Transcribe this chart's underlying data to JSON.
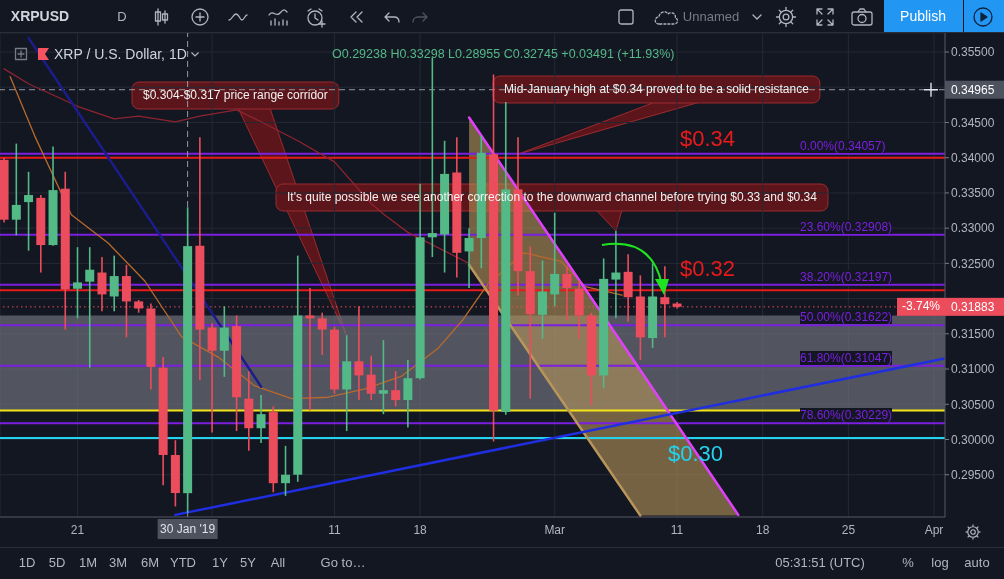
{
  "chart_data": {
    "type": "candlestick",
    "title": "XRP / U.S. Dollar, 1D",
    "subtitle": "O0.29238 H0.33298 L0.28955 C0.32745 +0.03491 (+11.93%)",
    "x": [
      "2019-01-15",
      "2019-01-16",
      "2019-01-17",
      "2019-01-18",
      "2019-01-19",
      "2019-01-20",
      "2019-01-21",
      "2019-01-22",
      "2019-01-23",
      "2019-01-24",
      "2019-01-25",
      "2019-01-26",
      "2019-01-27",
      "2019-01-28",
      "2019-01-29",
      "2019-01-30",
      "2019-01-31",
      "2019-02-01",
      "2019-02-02",
      "2019-02-03",
      "2019-02-04",
      "2019-02-05",
      "2019-02-06",
      "2019-02-07",
      "2019-02-08",
      "2019-02-09",
      "2019-02-10",
      "2019-02-11",
      "2019-02-12",
      "2019-02-13",
      "2019-02-14",
      "2019-02-15",
      "2019-02-16",
      "2019-02-17",
      "2019-02-18",
      "2019-02-19",
      "2019-02-20",
      "2019-02-21",
      "2019-02-22",
      "2019-02-23",
      "2019-02-24",
      "2019-02-25",
      "2019-02-26",
      "2019-02-27",
      "2019-02-28",
      "2019-03-01",
      "2019-03-02",
      "2019-03-03",
      "2019-03-04",
      "2019-03-05",
      "2019-03-06",
      "2019-03-07",
      "2019-03-08",
      "2019-03-09",
      "2019-03-10",
      "2019-03-11"
    ],
    "ohlc": [
      [
        0.3397,
        0.34,
        0.3308,
        0.3312
      ],
      [
        0.3312,
        0.342,
        0.329,
        0.3333
      ],
      [
        0.3337,
        0.338,
        0.3268,
        0.3347
      ],
      [
        0.3343,
        0.3347,
        0.3237,
        0.3276
      ],
      [
        0.3276,
        0.3416,
        0.3275,
        0.3354
      ],
      [
        0.3356,
        0.338,
        0.3156,
        0.3213
      ],
      [
        0.3214,
        0.3273,
        0.3172,
        0.3223
      ],
      [
        0.3224,
        0.3273,
        0.3102,
        0.3241
      ],
      [
        0.3237,
        0.3259,
        0.3182,
        0.3206
      ],
      [
        0.3203,
        0.3261,
        0.3182,
        0.3232
      ],
      [
        0.3232,
        0.3248,
        0.3145,
        0.3196
      ],
      [
        0.3196,
        0.3198,
        0.318,
        0.3186
      ],
      [
        0.3186,
        0.3193,
        0.3071,
        0.3103
      ],
      [
        0.3102,
        0.3117,
        0.2935,
        0.2978
      ],
      [
        0.2978,
        0.2999,
        0.2905,
        0.2924
      ],
      [
        0.29238,
        0.33298,
        0.28955,
        0.32745
      ],
      [
        0.3275,
        0.3429,
        0.3084,
        0.3156
      ],
      [
        0.3159,
        0.3165,
        0.301,
        0.3126
      ],
      [
        0.3126,
        0.3189,
        0.3089,
        0.3159
      ],
      [
        0.3161,
        0.3176,
        0.3012,
        0.306
      ],
      [
        0.3058,
        0.3097,
        0.2984,
        0.3016
      ],
      [
        0.3016,
        0.3063,
        0.2995,
        0.3036
      ],
      [
        0.3039,
        0.3047,
        0.2925,
        0.2938
      ],
      [
        0.2938,
        0.2991,
        0.292,
        0.295
      ],
      [
        0.295,
        0.3261,
        0.294,
        0.3176
      ],
      [
        0.3176,
        0.3215,
        0.3041,
        0.3172
      ],
      [
        0.3172,
        0.318,
        0.312,
        0.3156
      ],
      [
        0.3156,
        0.316,
        0.3065,
        0.3071
      ],
      [
        0.3071,
        0.3148,
        0.3012,
        0.3111
      ],
      [
        0.3111,
        0.3189,
        0.3056,
        0.3091
      ],
      [
        0.3092,
        0.3119,
        0.3056,
        0.3065
      ],
      [
        0.3065,
        0.3141,
        0.3036,
        0.307
      ],
      [
        0.307,
        0.3097,
        0.3047,
        0.3056
      ],
      [
        0.3056,
        0.3113,
        0.3017,
        0.3087
      ],
      [
        0.3087,
        0.3363,
        0.3085,
        0.3287
      ],
      [
        0.3287,
        0.3542,
        0.3259,
        0.3293
      ],
      [
        0.3291,
        0.3424,
        0.3237,
        0.3377
      ],
      [
        0.3379,
        0.3429,
        0.323,
        0.3265
      ],
      [
        0.3267,
        0.33,
        0.3215,
        0.3286
      ],
      [
        0.3286,
        0.3431,
        0.3243,
        0.3407
      ],
      [
        0.3405,
        0.3518,
        0.2997,
        0.3041
      ],
      [
        0.3039,
        0.3479,
        0.3035,
        0.3355
      ],
      [
        0.3355,
        0.3429,
        0.3204,
        0.3239
      ],
      [
        0.3239,
        0.3274,
        0.3058,
        0.3178
      ],
      [
        0.3177,
        0.3254,
        0.3143,
        0.321
      ],
      [
        0.3206,
        0.3322,
        0.3189,
        0.3235
      ],
      [
        0.3235,
        0.3246,
        0.3169,
        0.3215
      ],
      [
        0.3214,
        0.3226,
        0.3143,
        0.3176
      ],
      [
        0.3176,
        0.318,
        0.3049,
        0.3091
      ],
      [
        0.3091,
        0.3257,
        0.3073,
        0.3228
      ],
      [
        0.3227,
        0.3296,
        0.3172,
        0.3237
      ],
      [
        0.3238,
        0.3263,
        0.3167,
        0.3202
      ],
      [
        0.3203,
        0.3233,
        0.3113,
        0.3145
      ],
      [
        0.3144,
        0.325,
        0.313,
        0.3203
      ],
      [
        0.3202,
        0.3246,
        0.3145,
        0.3192
      ],
      [
        0.3193,
        0.3195,
        0.3186,
        0.31883
      ]
    ],
    "colors": [
      "#eb4d5c",
      "#53b987",
      "#53b987",
      "#eb4d5c",
      "#53b987",
      "#eb4d5c",
      "#53b987",
      "#53b987",
      "#eb4d5c",
      "#53b987",
      "#eb4d5c",
      "#eb4d5c",
      "#eb4d5c",
      "#eb4d5c",
      "#eb4d5c",
      "#53b987",
      "#eb4d5c",
      "#eb4d5c",
      "#53b987",
      "#eb4d5c",
      "#eb4d5c",
      "#53b987",
      "#eb4d5c",
      "#53b987",
      "#53b987",
      "#eb4d5c",
      "#eb4d5c",
      "#eb4d5c",
      "#53b987",
      "#eb4d5c",
      "#eb4d5c",
      "#53b987",
      "#eb4d5c",
      "#53b987",
      "#53b987",
      "#53b987",
      "#53b987",
      "#eb4d5c",
      "#53b987",
      "#53b987",
      "#eb4d5c",
      "#53b987",
      "#eb4d5c",
      "#eb4d5c",
      "#53b987",
      "#53b987",
      "#eb4d5c",
      "#eb4d5c",
      "#eb4d5c",
      "#53b987",
      "#53b987",
      "#eb4d5c",
      "#eb4d5c",
      "#53b987",
      "#eb4d5c",
      "#eb4d5c"
    ],
    "series": [
      {
        "type": "line",
        "color": "#b8692c",
        "x": [
          "2019-01-15T12:00",
          "2019-01-17T12:00",
          "2019-01-20T12:00",
          "2019-01-23T12:00",
          "2019-01-26T12:00",
          "2019-01-29T12:00",
          "2019-02-01T12:00",
          "2019-02-04T12:00",
          "2019-02-07T12:00",
          "2019-02-10T12:00",
          "2019-02-13T12:00",
          "2019-02-16T12:00",
          "2019-02-19T12:00",
          "2019-02-21T12:00",
          "2019-02-23T12:00",
          "2019-02-26T12:00",
          "2019-03-01T12:00",
          "2019-03-03T12:00",
          "2019-03-06T12:00"
        ],
        "values": [
          0.3515,
          0.3431,
          0.3319,
          0.3279,
          0.3225,
          0.3146,
          0.3117,
          0.3076,
          0.3058,
          0.306,
          0.3072,
          0.309,
          0.313,
          0.317,
          0.322,
          0.3265,
          0.3253,
          0.3217,
          0.3205
        ]
      },
      {
        "type": "line",
        "color": "#8e2430",
        "x": [
          "2019-01-15",
          "2019-01-17",
          "2019-01-21",
          "2019-01-24",
          "2019-01-26",
          "2019-01-29",
          "2019-01-31",
          "2019-02-03",
          "2019-02-05",
          "2019-02-08",
          "2019-02-11",
          "2019-02-14",
          "2019-02-15",
          "2019-02-17",
          "2019-02-22"
        ],
        "values": [
          0.3526,
          0.3505,
          0.3473,
          0.3455,
          0.3459,
          0.3451,
          0.3459,
          0.3468,
          0.3451,
          0.3424,
          0.3394,
          0.3335,
          0.332,
          0.3294,
          0.325
        ]
      },
      {
        "type": "line",
        "color": "#1c1c8a",
        "x": [
          "2019-01-17",
          "2019-02-05"
        ],
        "values": [
          0.357,
          0.3075
        ]
      },
      {
        "type": "line",
        "color": "#b8955a",
        "x": [
          "2019-02-22",
          "2019-03-08",
          "2019-03-16"
        ],
        "values": [
          0.3248,
          0.2892,
          null
        ],
        "lower": [
          0.3248,
          0.2892,
          0.2892
        ],
        "upper": [
          0.3457,
          0.3101,
          0.2893
        ]
      },
      {
        "type": "line",
        "color": "#e040fb",
        "x": [
          "2019-02-22",
          "2019-03-16"
        ],
        "values": [
          0.3457,
          0.2893
        ]
      },
      {
        "type": "line",
        "color": "#1f2ee0",
        "x": [
          "2019-01-29",
          "2019-04-01T21:00"
        ],
        "values": [
          0.2893,
          0.3115
        ]
      }
    ],
    "marker": "none",
    "xlim": [
      "2019-01-14T16:00",
      "2019-04-01T21:30"
    ],
    "xticks": [
      {
        "value": "2019-01-21",
        "label": "21"
      },
      {
        "value": "2019-02-01",
        "label": null
      },
      {
        "value": "2019-02-11",
        "label": "11"
      },
      {
        "value": "2019-02-18",
        "label": "18"
      },
      {
        "value": "2019-03-01",
        "label": "Mar"
      },
      {
        "value": "2019-03-11",
        "label": "11"
      },
      {
        "value": "2019-03-18",
        "label": "18"
      },
      {
        "value": "2019-03-25",
        "label": "25"
      },
      {
        "value": "2019-04-01",
        "label": "Apr"
      }
    ],
    "ylim": [
      0.289,
      0.3577
    ],
    "yticks": [
      {
        "value": 0.295,
        "label": "0.29500"
      },
      {
        "value": 0.3,
        "label": "0.30000"
      },
      {
        "value": 0.305,
        "label": "0.30500"
      },
      {
        "value": 0.31,
        "label": "0.31000"
      },
      {
        "value": 0.315,
        "label": "0.31500"
      },
      {
        "value": 0.32,
        "label": null
      },
      {
        "value": 0.325,
        "label": "0.32500"
      },
      {
        "value": 0.33,
        "label": "0.33000"
      },
      {
        "value": 0.335,
        "label": "0.33500"
      },
      {
        "value": 0.34,
        "label": "0.34000"
      },
      {
        "value": 0.345,
        "label": "0.34500"
      },
      {
        "value": 0.35,
        "label": null
      },
      {
        "value": 0.355,
        "label": "0.35500"
      }
    ],
    "grid": true,
    "bands": [
      {
        "axis": "y",
        "from": 0.3041,
        "to": 0.3176,
        "color": "#6d707b"
      }
    ],
    "ref_lines": [
      {
        "axis": "y",
        "value": 0.34,
        "label": "$0.34",
        "color": "#e81a1a"
      },
      {
        "axis": "y",
        "value": 0.3212,
        "label": "$0.32",
        "color": "#e81a1a"
      },
      {
        "axis": "y",
        "value": 0.3041,
        "color": "#f2e318"
      },
      {
        "axis": "y",
        "value": 0.3002,
        "label": "$0.30",
        "color": "#22d3ee"
      },
      {
        "axis": "y",
        "value": 0.34057,
        "label": "0.00%(0.34057)",
        "color": "#7b1fe0"
      },
      {
        "axis": "y",
        "value": 0.32908,
        "label": "23.60%(0.32908)",
        "color": "#7b1fe0"
      },
      {
        "axis": "y",
        "value": 0.32197,
        "label": "38.20%(0.32197)",
        "color": "#7b1fe0"
      },
      {
        "axis": "y",
        "value": 0.31622,
        "label": "50.00%(0.31622)",
        "color": "#7b1fe0"
      },
      {
        "axis": "y",
        "value": 0.31047,
        "label": "61.80%(0.31047)",
        "color": "#7b1fe0"
      },
      {
        "axis": "y",
        "value": 0.30229,
        "label": "78.60%(0.30229)",
        "color": "#7b1fe0"
      },
      {
        "axis": "y",
        "value": 0.34965,
        "label": "0.34965",
        "color": "#9598a1",
        "line_style": "dashed"
      },
      {
        "axis": "x",
        "value": "2019-01-30",
        "label": "30 Jan '19",
        "color": "#9598a1",
        "line_style": "dashed"
      },
      {
        "axis": "y",
        "value": 0.31883,
        "label": "0.31883",
        "color": "#eb4d5c",
        "line_style": "dotted"
      }
    ],
    "annotations": [
      {
        "text": "$0.304-$0.317 price range corridor",
        "x": "2019-02-12",
        "y": 0.3147
      },
      {
        "text": "Mid-January high at $0.34 proved to be a solid resistance",
        "x": "2019-02-26",
        "y": 0.3405
      },
      {
        "text": "It's quite possible we see another correction to the downward channel before trying $0.33 and $0.34",
        "x": "2019-03-06",
        "y": 0.3296
      },
      "XRPUSD",
      "D",
      "Unnamed",
      "Publish",
      "1D",
      "5D",
      "1M",
      "3M",
      "6M",
      "YTD",
      "1Y",
      "5Y",
      "All",
      "Go to…",
      "05:31:51 (UTC)",
      "%",
      "log",
      "auto",
      "-3.74%"
    ]
  }
}
